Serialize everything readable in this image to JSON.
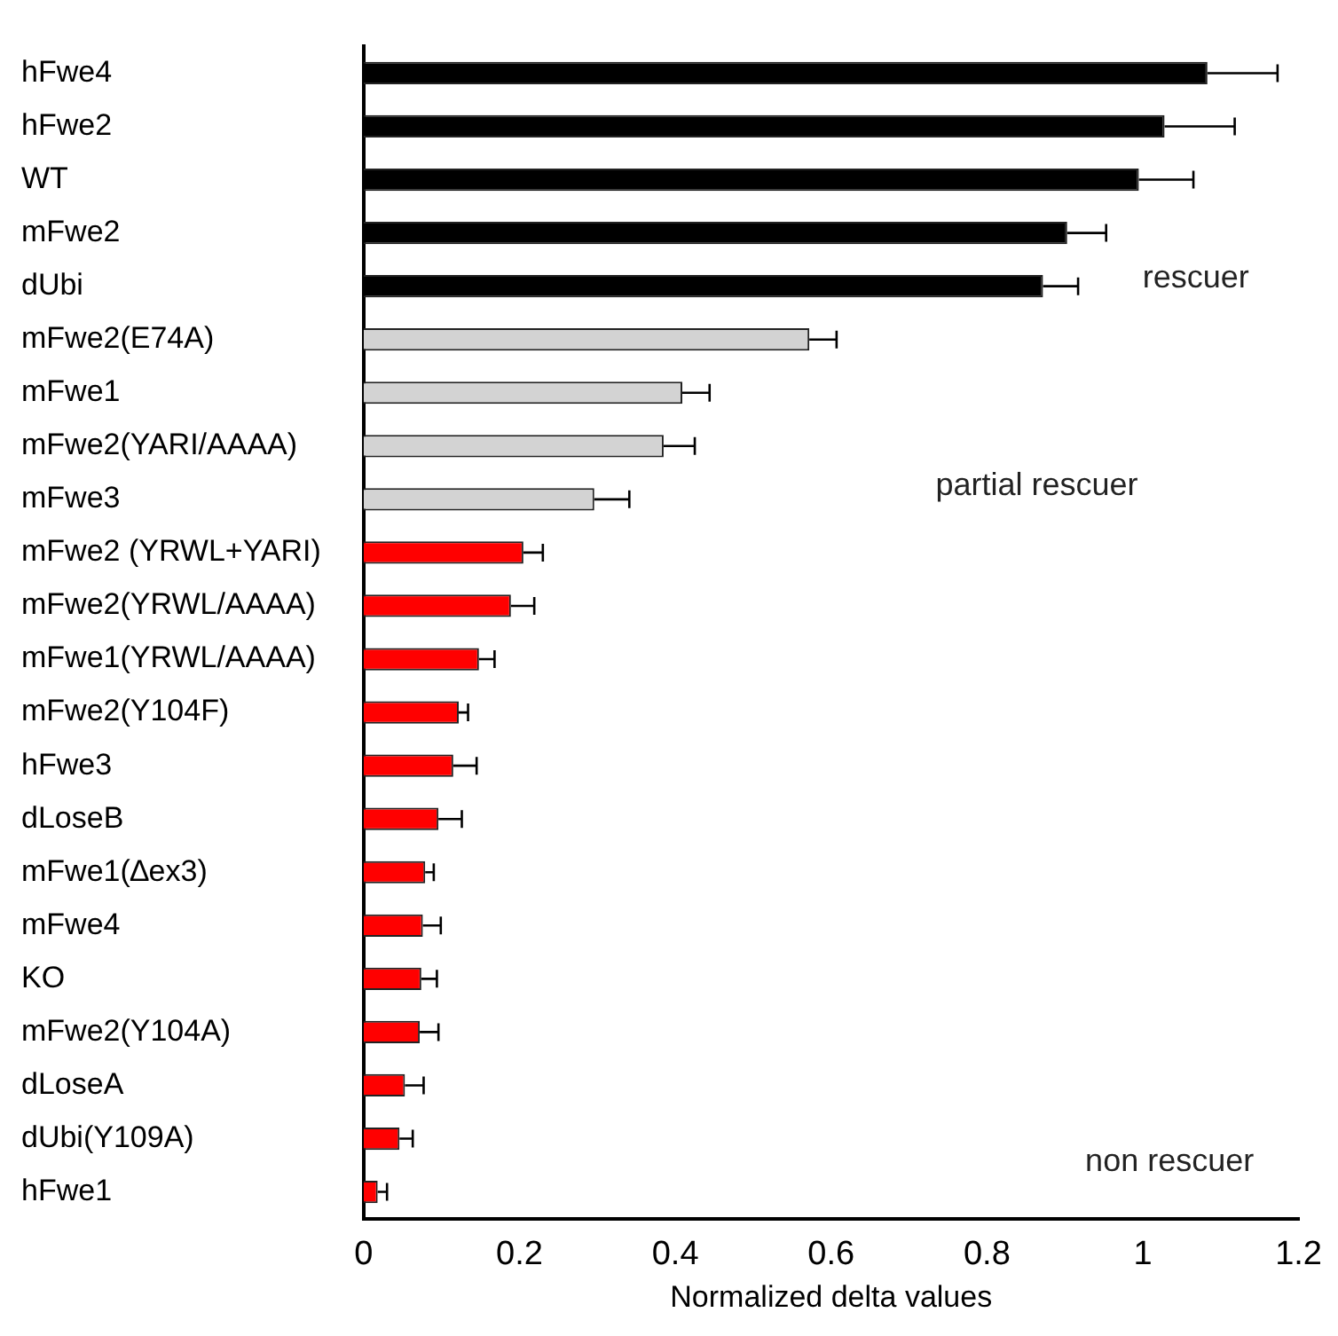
{
  "chart_data": {
    "type": "bar",
    "orientation": "horizontal",
    "xlabel": "Normalized delta values",
    "categories": [
      "hFwe4",
      "hFwe2",
      "WT",
      "mFwe2",
      "dUbi",
      "mFwe2(E74A)",
      "mFwe1",
      "mFwe2(YARI/AAAA)",
      "mFwe3",
      "mFwe2 (YRWL+YARI)",
      "mFwe2(YRWL/AAAA)",
      "mFwe1(YRWL/AAAA)",
      "mFwe2(Y104F)",
      "hFwe3",
      "dLoseB",
      "mFwe1(∆ex3)",
      "mFwe4",
      "KO",
      "mFwe2(Y104A)",
      "dLoseA",
      "dUbi(Y109A)",
      "hFwe1"
    ],
    "values": [
      1.083,
      1.028,
      0.995,
      0.903,
      0.872,
      0.572,
      0.409,
      0.385,
      0.296,
      0.205,
      0.189,
      0.148,
      0.122,
      0.115,
      0.096,
      0.079,
      0.076,
      0.074,
      0.072,
      0.053,
      0.046,
      0.018
    ],
    "errors": [
      0.09,
      0.09,
      0.07,
      0.05,
      0.045,
      0.035,
      0.035,
      0.04,
      0.045,
      0.025,
      0.03,
      0.02,
      0.012,
      0.03,
      0.03,
      0.011,
      0.023,
      0.02,
      0.024,
      0.024,
      0.017,
      0.012
    ],
    "colors": [
      "#000000",
      "#000000",
      "#000000",
      "#000000",
      "#000000",
      "#d3d3d3",
      "#d3d3d3",
      "#d3d3d3",
      "#d3d3d3",
      "#ff0000",
      "#ff0000",
      "#ff0000",
      "#ff0000",
      "#ff0000",
      "#ff0000",
      "#ff0000",
      "#ff0000",
      "#ff0000",
      "#ff0000",
      "#ff0000",
      "#ff0000",
      "#ff0000"
    ],
    "xlim": [
      0,
      1.2
    ],
    "xticks": [
      0,
      0.2,
      0.4,
      0.6,
      0.8,
      1,
      1.2
    ],
    "annotations": [
      "rescuer",
      "partial rescuer",
      "non rescuer"
    ],
    "grid": false,
    "legend": false
  }
}
